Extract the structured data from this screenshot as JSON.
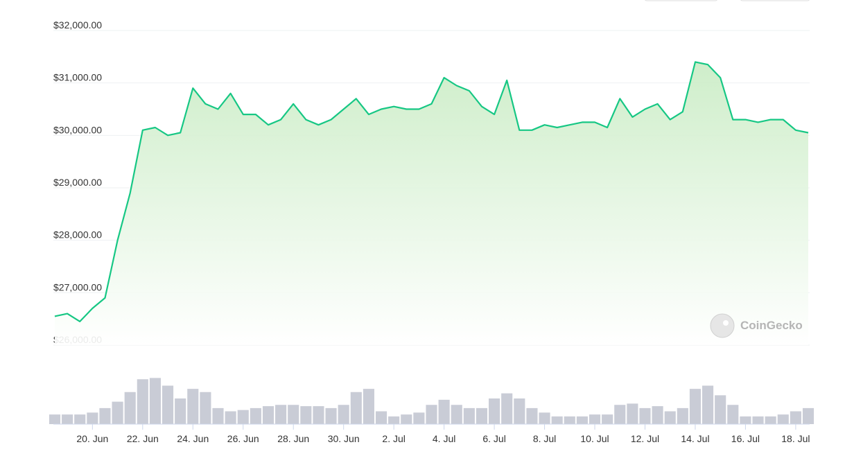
{
  "chart_data": {
    "type": "line",
    "categories": [
      null,
      null,
      null,
      "20. Jun",
      null,
      null,
      null,
      "22. Jun",
      null,
      null,
      null,
      "24. Jun",
      null,
      null,
      null,
      "26. Jun",
      null,
      null,
      null,
      "28. Jun",
      null,
      null,
      null,
      "30. Jun",
      null,
      null,
      null,
      "2. Jul",
      null,
      null,
      null,
      "4. Jul",
      null,
      null,
      null,
      "6. Jul",
      null,
      null,
      null,
      "8. Jul",
      null,
      null,
      null,
      "10. Jul",
      null,
      null,
      null,
      "12. Jul",
      null,
      null,
      null,
      "14. Jul",
      null,
      null,
      null,
      "16. Jul",
      null,
      null,
      null,
      "18. Jul",
      null
    ],
    "series": [
      {
        "color": "#16c784",
        "values": [
          26550,
          26600,
          26450,
          26700,
          26900,
          28000,
          28900,
          30100,
          30150,
          30000,
          30050,
          30900,
          30600,
          30500,
          30800,
          30400,
          30400,
          30200,
          30300,
          30600,
          30300,
          30200,
          30300,
          30500,
          30700,
          30400,
          30500,
          30550,
          30500,
          30500,
          30600,
          31100,
          30950,
          30850,
          30550,
          30400,
          31050,
          30100,
          30100,
          30200,
          30150,
          30200,
          30250,
          30250,
          30150,
          30700,
          30350,
          30500,
          30600,
          30300,
          30450,
          31400,
          31350,
          31100,
          30300,
          30300,
          30250,
          30300,
          30300,
          30100,
          30050
        ]
      }
    ],
    "volume": {
      "color": "#c9ccd6",
      "values": [
        15,
        15,
        15,
        18,
        25,
        35,
        50,
        70,
        72,
        60,
        40,
        55,
        50,
        25,
        20,
        22,
        25,
        28,
        30,
        30,
        28,
        28,
        25,
        30,
        50,
        55,
        20,
        12,
        15,
        18,
        30,
        38,
        30,
        25,
        25,
        40,
        48,
        40,
        25,
        18,
        12,
        12,
        12,
        15,
        15,
        30,
        32,
        25,
        28,
        20,
        25,
        55,
        60,
        45,
        30,
        12,
        12,
        12,
        15,
        20,
        25
      ],
      "ylim": [
        0,
        80
      ]
    },
    "ylim": [
      26000,
      32000
    ],
    "yticks": [
      {
        "value": 26000,
        "label": "$26,000.00"
      },
      {
        "value": 27000,
        "label": "$27,000.00"
      },
      {
        "value": 28000,
        "label": "$28,000.00"
      },
      {
        "value": 29000,
        "label": "$29,000.00"
      },
      {
        "value": 30000,
        "label": "$30,000.00"
      },
      {
        "value": 31000,
        "label": "$31,000.00"
      },
      {
        "value": 32000,
        "label": "$32,000.00"
      }
    ],
    "grid": true,
    "watermark": "CoinGecko"
  }
}
